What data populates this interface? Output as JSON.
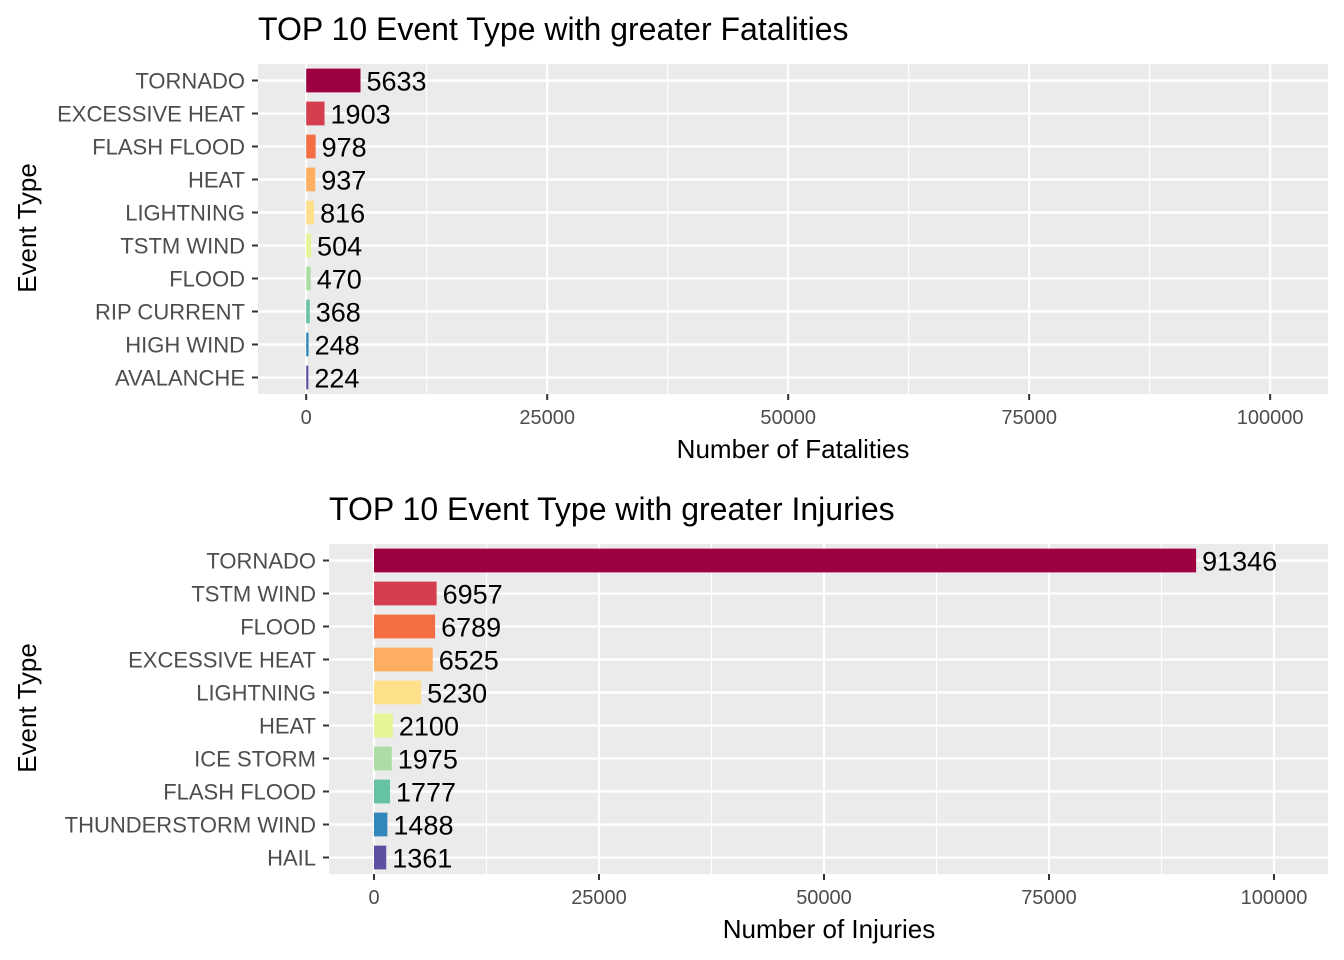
{
  "chart_data": [
    {
      "type": "bar",
      "orientation": "horizontal",
      "title": "TOP 10 Event Type with greater Fatalities",
      "xlabel": "Number of Fatalities",
      "ylabel": "Event Type",
      "xlim": [
        -5000,
        106000
      ],
      "xticks": [
        0,
        25000,
        50000,
        75000,
        100000
      ],
      "xtick_labels": [
        "0",
        "25000",
        "50000",
        "75000",
        "100000"
      ],
      "grid": true,
      "categories": [
        "TORNADO",
        "EXCESSIVE HEAT",
        "FLASH FLOOD",
        "HEAT",
        "LIGHTNING",
        "TSTM WIND",
        "FLOOD",
        "RIP CURRENT",
        "HIGH WIND",
        "AVALANCHE"
      ],
      "values": [
        5633,
        1903,
        978,
        937,
        816,
        504,
        470,
        368,
        248,
        224
      ],
      "value_labels": [
        "5633",
        "1903",
        "978",
        "937",
        "816",
        "504",
        "470",
        "368",
        "248",
        "224"
      ],
      "colors": [
        "#9E0142",
        "#D53E4F",
        "#F46D43",
        "#FDAE61",
        "#FEE08B",
        "#E6F598",
        "#ABDDA4",
        "#66C2A5",
        "#3288BD",
        "#5E4FA2"
      ]
    },
    {
      "type": "bar",
      "orientation": "horizontal",
      "title": "TOP 10 Event Type with greater Injuries",
      "xlabel": "Number of Injuries",
      "ylabel": "Event Type",
      "xlim": [
        -5000,
        106000
      ],
      "xticks": [
        0,
        25000,
        50000,
        75000,
        100000
      ],
      "xtick_labels": [
        "0",
        "25000",
        "50000",
        "75000",
        "100000"
      ],
      "grid": true,
      "categories": [
        "TORNADO",
        "TSTM WIND",
        "FLOOD",
        "EXCESSIVE HEAT",
        "LIGHTNING",
        "HEAT",
        "ICE STORM",
        "FLASH FLOOD",
        "THUNDERSTORM WIND",
        "HAIL"
      ],
      "values": [
        91346,
        6957,
        6789,
        6525,
        5230,
        2100,
        1975,
        1777,
        1488,
        1361
      ],
      "value_labels": [
        "91346",
        "6957",
        "6789",
        "6525",
        "5230",
        "2100",
        "1975",
        "1777",
        "1488",
        "1361"
      ],
      "colors": [
        "#9E0142",
        "#D53E4F",
        "#F46D43",
        "#FDAE61",
        "#FEE08B",
        "#E6F598",
        "#ABDDA4",
        "#66C2A5",
        "#3288BD",
        "#5E4FA2"
      ]
    }
  ]
}
